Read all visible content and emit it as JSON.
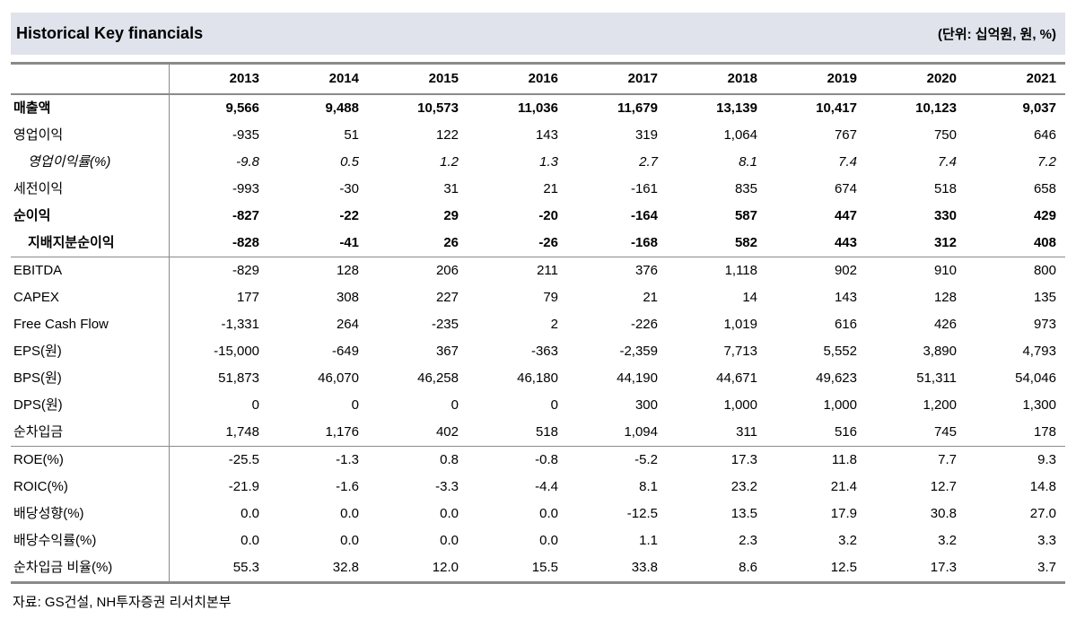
{
  "title": "Historical Key financials",
  "unit_label": "(단위: 십억원, 원, %)",
  "source": "자료: GS건설, NH투자증권 리서치본부",
  "colors": {
    "title_bar_bg": "#e0e3ec",
    "rule_gray": "#8a8a8a",
    "text": "#000000"
  },
  "table": {
    "years": [
      "2013",
      "2014",
      "2015",
      "2016",
      "2017",
      "2018",
      "2019",
      "2020",
      "2021"
    ],
    "rows": [
      {
        "label": "매출액",
        "bold": true,
        "values": [
          "9,566",
          "9,488",
          "10,573",
          "11,036",
          "11,679",
          "13,139",
          "10,417",
          "10,123",
          "9,037"
        ]
      },
      {
        "label": "영업이익",
        "values": [
          "-935",
          "51",
          "122",
          "143",
          "319",
          "1,064",
          "767",
          "750",
          "646"
        ]
      },
      {
        "label": "영업이익률(%)",
        "italic": true,
        "indent": true,
        "values": [
          "-9.8",
          "0.5",
          "1.2",
          "1.3",
          "2.7",
          "8.1",
          "7.4",
          "7.4",
          "7.2"
        ]
      },
      {
        "label": "세전이익",
        "values": [
          "-993",
          "-30",
          "31",
          "21",
          "-161",
          "835",
          "674",
          "518",
          "658"
        ]
      },
      {
        "label": "순이익",
        "bold": true,
        "values": [
          "-827",
          "-22",
          "29",
          "-20",
          "-164",
          "587",
          "447",
          "330",
          "429"
        ]
      },
      {
        "label": "지배지분순이익",
        "bold": true,
        "indent": true,
        "values": [
          "-828",
          "-41",
          "26",
          "-26",
          "-168",
          "582",
          "443",
          "312",
          "408"
        ]
      },
      {
        "label": "EBITDA",
        "section": true,
        "values": [
          "-829",
          "128",
          "206",
          "211",
          "376",
          "1,118",
          "902",
          "910",
          "800"
        ]
      },
      {
        "label": "CAPEX",
        "values": [
          "177",
          "308",
          "227",
          "79",
          "21",
          "14",
          "143",
          "128",
          "135"
        ]
      },
      {
        "label": "Free Cash Flow",
        "values": [
          "-1,331",
          "264",
          "-235",
          "2",
          "-226",
          "1,019",
          "616",
          "426",
          "973"
        ]
      },
      {
        "label": "EPS(원)",
        "values": [
          "-15,000",
          "-649",
          "367",
          "-363",
          "-2,359",
          "7,713",
          "5,552",
          "3,890",
          "4,793"
        ]
      },
      {
        "label": "BPS(원)",
        "values": [
          "51,873",
          "46,070",
          "46,258",
          "46,180",
          "44,190",
          "44,671",
          "49,623",
          "51,311",
          "54,046"
        ]
      },
      {
        "label": "DPS(원)",
        "values": [
          "0",
          "0",
          "0",
          "0",
          "300",
          "1,000",
          "1,000",
          "1,200",
          "1,300"
        ]
      },
      {
        "label": "순차입금",
        "values": [
          "1,748",
          "1,176",
          "402",
          "518",
          "1,094",
          "311",
          "516",
          "745",
          "178"
        ]
      },
      {
        "label": "ROE(%)",
        "section": true,
        "values": [
          "-25.5",
          "-1.3",
          "0.8",
          "-0.8",
          "-5.2",
          "17.3",
          "11.8",
          "7.7",
          "9.3"
        ]
      },
      {
        "label": "ROIC(%)",
        "values": [
          "-21.9",
          "-1.6",
          "-3.3",
          "-4.4",
          "8.1",
          "23.2",
          "21.4",
          "12.7",
          "14.8"
        ]
      },
      {
        "label": "배당성향(%)",
        "values": [
          "0.0",
          "0.0",
          "0.0",
          "0.0",
          "-12.5",
          "13.5",
          "17.9",
          "30.8",
          "27.0"
        ]
      },
      {
        "label": "배당수익률(%)",
        "values": [
          "0.0",
          "0.0",
          "0.0",
          "0.0",
          "1.1",
          "2.3",
          "3.2",
          "3.2",
          "3.3"
        ]
      },
      {
        "label": "순차입금 비율(%)",
        "values": [
          "55.3",
          "32.8",
          "12.0",
          "15.5",
          "33.8",
          "8.6",
          "12.5",
          "17.3",
          "3.7"
        ]
      }
    ]
  }
}
